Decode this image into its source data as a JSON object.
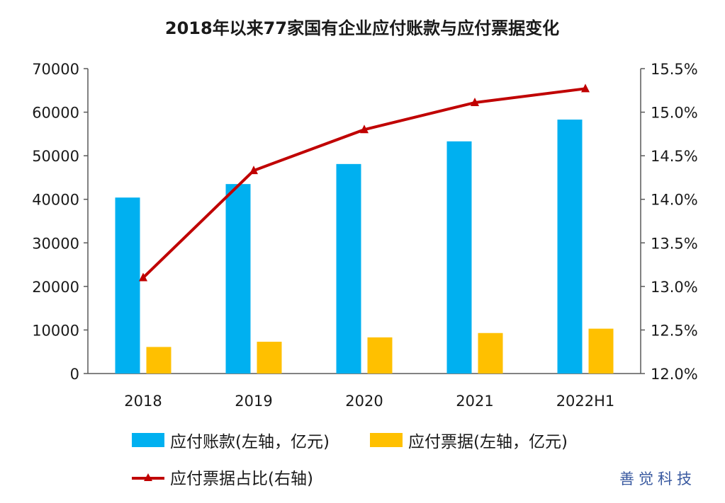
{
  "chart_data": {
    "type": "bar",
    "title": "2018年以来77家国有企业应付账款与应付票据变化",
    "categories": [
      "2018",
      "2019",
      "2020",
      "2021",
      "2022H1"
    ],
    "series": [
      {
        "name": "应付账款(左轴，亿元)",
        "type": "bar",
        "axis": "left",
        "color": "#00B0F0",
        "values": [
          40400,
          43500,
          48100,
          53300,
          58300
        ]
      },
      {
        "name": "应付票据(左轴，亿元)",
        "type": "bar",
        "axis": "left",
        "color": "#FFC000",
        "values": [
          6100,
          7300,
          8300,
          9300,
          10300
        ]
      },
      {
        "name": "应付票据占比(右轴)",
        "type": "line",
        "axis": "right",
        "color": "#C00000",
        "marker": "triangle",
        "values": [
          13.1,
          14.33,
          14.8,
          15.11,
          15.27
        ]
      }
    ],
    "y_left": {
      "min": 0,
      "max": 70000,
      "step": 10000,
      "ticks": [
        "0",
        "10000",
        "20000",
        "30000",
        "40000",
        "50000",
        "60000",
        "70000"
      ]
    },
    "y_right": {
      "min": 12.0,
      "max": 15.5,
      "step": 0.5,
      "ticks": [
        "12.0%",
        "12.5%",
        "13.0%",
        "13.5%",
        "14.0%",
        "14.5%",
        "15.0%",
        "15.5%"
      ]
    },
    "grid": false,
    "legend_position": "bottom"
  },
  "watermark": "善觉科技"
}
